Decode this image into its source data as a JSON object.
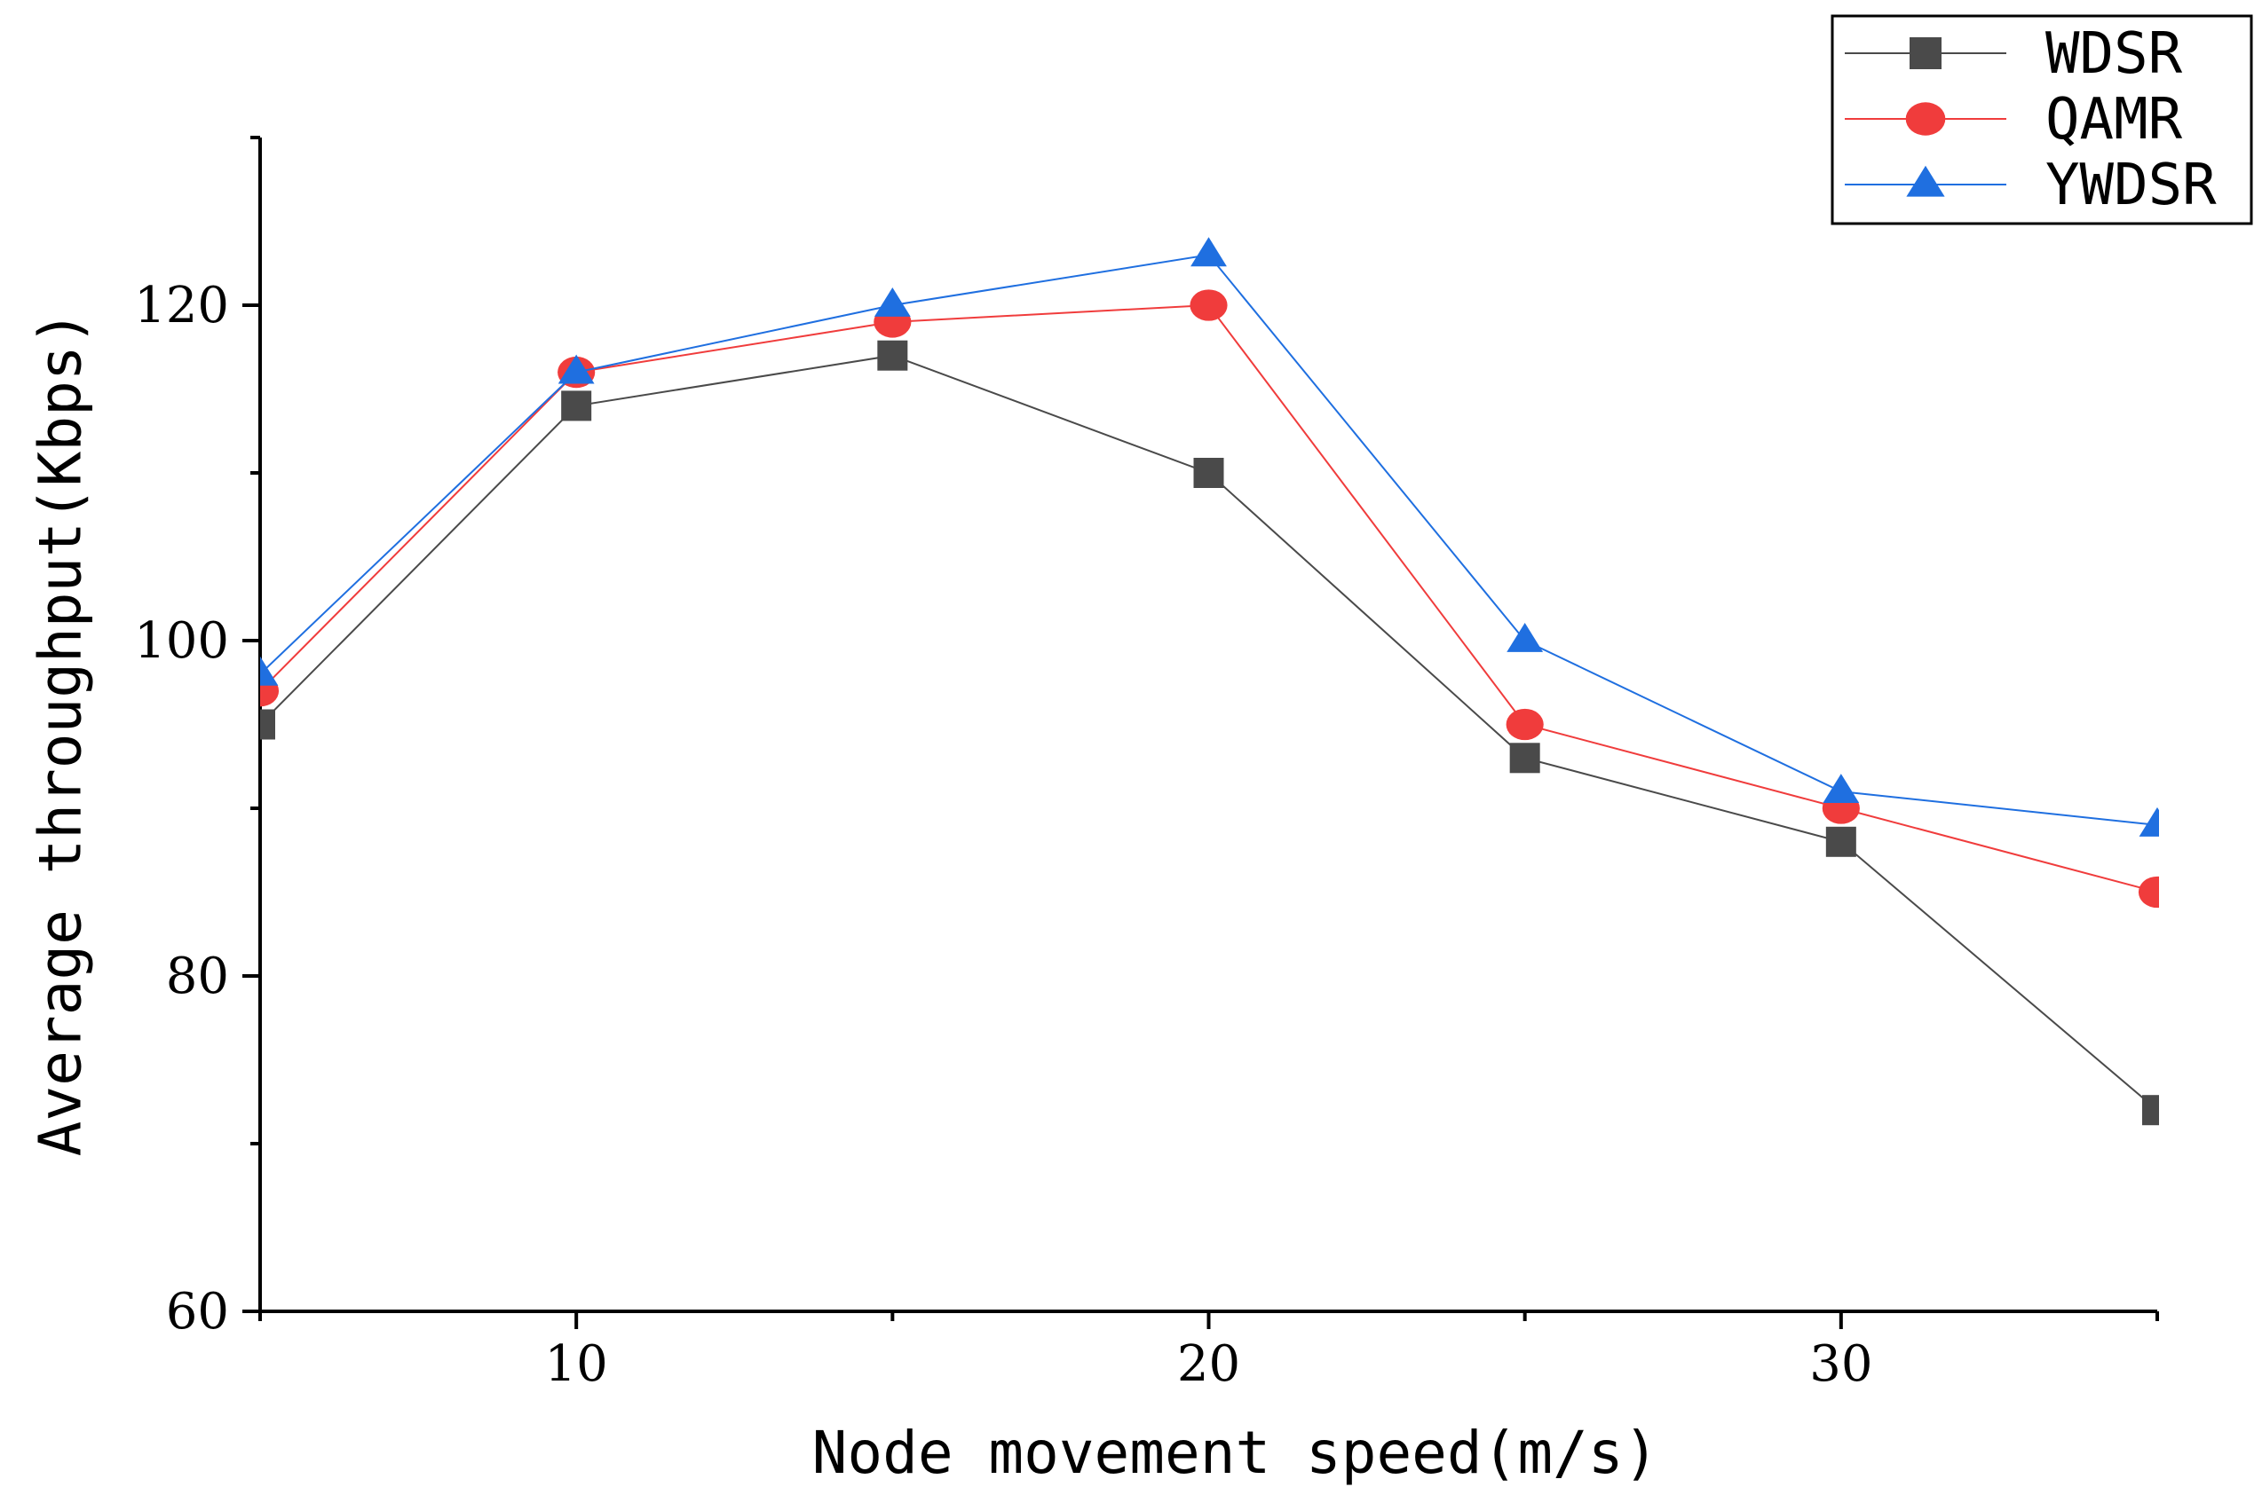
{
  "chart_data": {
    "type": "line",
    "title": "",
    "xlabel": "Node movement speed(m/s)",
    "ylabel": "Average throughput(Kbps)",
    "x": [
      5,
      10,
      15,
      20,
      25,
      30,
      35
    ],
    "xlim": [
      5,
      35
    ],
    "ylim": [
      60,
      130
    ],
    "x_ticks": [
      10,
      20,
      30
    ],
    "x_tick_labels": [
      "10",
      "20",
      "30"
    ],
    "x_minor_ticks": [
      5,
      15,
      25,
      35
    ],
    "y_ticks": [
      60,
      80,
      100,
      120
    ],
    "y_tick_labels": [
      "60",
      "80",
      "100",
      "120"
    ],
    "y_minor_ticks": [
      70,
      90,
      110,
      130
    ],
    "grid": false,
    "legend_position": "top-right",
    "series": [
      {
        "name": "WDSR",
        "color": "#4a4a4a",
        "marker": "square",
        "values": [
          95,
          114,
          117,
          110,
          93,
          88,
          72
        ]
      },
      {
        "name": "QAMR",
        "color": "#f03c3c",
        "marker": "circle",
        "values": [
          97,
          116,
          119,
          120,
          95,
          90,
          85
        ]
      },
      {
        "name": "YWDSR",
        "color": "#1f6fe0",
        "marker": "triangle",
        "values": [
          98,
          116,
          120,
          123,
          100,
          91,
          89
        ]
      }
    ]
  }
}
